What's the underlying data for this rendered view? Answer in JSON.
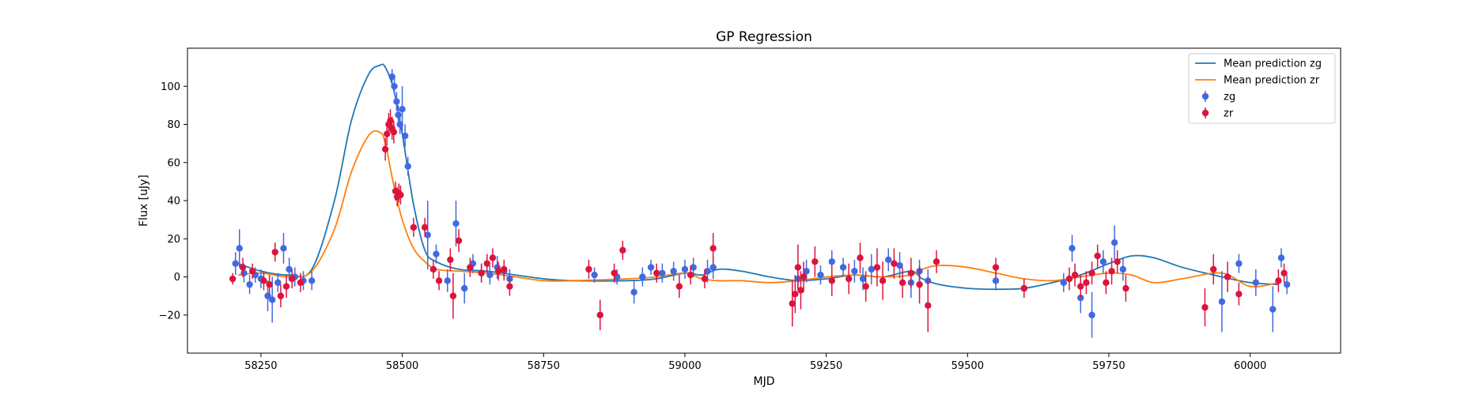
{
  "chart_data": {
    "type": "scatter",
    "title": "GP Regression",
    "xlabel": "MJD",
    "ylabel": "Flux [uJy]",
    "xlim": [
      58120,
      60160
    ],
    "ylim": [
      -40,
      120
    ],
    "xticks": [
      58250,
      58500,
      58750,
      59000,
      59250,
      59500,
      59750,
      60000
    ],
    "yticks": [
      -20,
      0,
      20,
      40,
      60,
      80,
      100
    ],
    "grid": false,
    "legend_position": "top-right",
    "colors": {
      "mean_zg": "#1f77b4",
      "mean_zr": "#ff7f0e",
      "obs_zg": "#4169e1",
      "obs_zr": "#dc143c"
    },
    "legend": [
      {
        "label": "Mean prediction zg",
        "kind": "line",
        "color": "#1f77b4"
      },
      {
        "label": "Mean prediction zr",
        "kind": "line",
        "color": "#ff7f0e"
      },
      {
        "label": "zg",
        "kind": "errorbar",
        "color": "#4169e1"
      },
      {
        "label": "zr",
        "kind": "errorbar",
        "color": "#dc143c"
      }
    ],
    "series": [
      {
        "name": "Mean prediction zg",
        "kind": "line",
        "x": [
          58210,
          58250,
          58300,
          58340,
          58380,
          58410,
          58440,
          58460,
          58470,
          58485,
          58500,
          58520,
          58540,
          58560,
          58600,
          58650,
          58700,
          58750,
          58800,
          58900,
          58950,
          59000,
          59030,
          59060,
          59100,
          59150,
          59200,
          59250,
          59300,
          59350,
          59400,
          59420,
          59450,
          59500,
          59550,
          59600,
          59650,
          59700,
          59750,
          59790,
          59830,
          59880,
          59950,
          60000,
          60050
        ],
        "y": [
          7,
          3,
          1,
          4,
          40,
          82,
          106,
          111,
          110,
          98,
          75,
          38,
          14,
          8,
          4,
          3,
          1,
          -1,
          -2,
          -2,
          -1,
          2,
          1,
          4,
          3,
          0,
          -2,
          -1,
          1,
          0,
          3,
          -1,
          -4,
          -6,
          -6.5,
          -6,
          -3,
          1,
          7,
          11,
          10,
          5,
          0,
          -3,
          -4
        ]
      },
      {
        "name": "Mean prediction zr",
        "kind": "line",
        "x": [
          58210,
          58250,
          58300,
          58340,
          58380,
          58410,
          58440,
          58460,
          58470,
          58485,
          58500,
          58520,
          58540,
          58560,
          58600,
          58650,
          58700,
          58750,
          58800,
          58900,
          58950,
          59000,
          59030,
          59060,
          59100,
          59150,
          59200,
          59250,
          59300,
          59350,
          59400,
          59420,
          59450,
          59500,
          59550,
          59600,
          59650,
          59700,
          59750,
          59790,
          59830,
          59880,
          59950,
          60000,
          60050
        ],
        "y": [
          1,
          2,
          0,
          3,
          25,
          55,
          74,
          76,
          70,
          48,
          30,
          15,
          8,
          4,
          3,
          2,
          0,
          -2,
          -2,
          -1,
          0,
          2,
          -1,
          -2,
          -2,
          -3,
          -2,
          0,
          1,
          0,
          1,
          4,
          6,
          5,
          2,
          -1,
          -2,
          0,
          2,
          1,
          -3,
          -1,
          2,
          -5,
          -3
        ]
      },
      {
        "name": "zg",
        "kind": "errorbar",
        "x": [
          58205,
          58212,
          58220,
          58230,
          58240,
          58250,
          58262,
          58270,
          58280,
          58290,
          58300,
          58310,
          58325,
          58340,
          58482,
          58486,
          58490,
          58493,
          58496,
          58500,
          58505,
          58510,
          58545,
          58560,
          58580,
          58595,
          58610,
          58625,
          58640,
          58655,
          58668,
          58680,
          58690,
          58840,
          58880,
          58910,
          58925,
          58940,
          58960,
          58980,
          59000,
          59015,
          59040,
          59050,
          59200,
          59215,
          59240,
          59260,
          59280,
          59300,
          59315,
          59330,
          59360,
          59380,
          59400,
          59415,
          59430,
          59550,
          59600,
          59670,
          59685,
          59700,
          59720,
          59740,
          59760,
          59775,
          59950,
          59980,
          60010,
          60040,
          60055,
          60065
        ],
        "y": [
          7,
          15,
          2,
          -4,
          1,
          -1,
          -10,
          -12,
          -3,
          15,
          4,
          0,
          -2,
          -2,
          105,
          100,
          92,
          85,
          80,
          88,
          74,
          58,
          22,
          12,
          -2,
          28,
          -6,
          7,
          2,
          1,
          5,
          3,
          -1,
          1,
          0,
          -8,
          0,
          5,
          2,
          3,
          4,
          5,
          3,
          5,
          -1,
          3,
          1,
          8,
          5,
          3,
          -1,
          4,
          9,
          6,
          -3,
          3,
          -2,
          -2,
          -6,
          -3,
          15,
          -11,
          -20,
          8,
          18,
          4,
          -13,
          7,
          -3,
          -17,
          10,
          -4
        ],
        "yerr": [
          6,
          10,
          5,
          5,
          4,
          5,
          8,
          12,
          5,
          8,
          6,
          5,
          5,
          5,
          4,
          4,
          5,
          5,
          5,
          12,
          6,
          5,
          18,
          5,
          6,
          12,
          8,
          5,
          5,
          5,
          6,
          5,
          5,
          4,
          4,
          6,
          5,
          4,
          5,
          5,
          5,
          5,
          6,
          6,
          5,
          6,
          5,
          6,
          5,
          6,
          6,
          8,
          6,
          7,
          8,
          6,
          6,
          5,
          5,
          5,
          7,
          8,
          12,
          6,
          9,
          6,
          16,
          5,
          7,
          12,
          5,
          5
        ]
      },
      {
        "name": "zr",
        "kind": "errorbar",
        "x": [
          58200,
          58218,
          58235,
          58255,
          58265,
          58275,
          58285,
          58295,
          58305,
          58320,
          58470,
          58473,
          58476,
          58479,
          58482,
          58485,
          58488,
          58491,
          58494,
          58497,
          58520,
          58540,
          58555,
          58565,
          58585,
          58590,
          58600,
          58620,
          58640,
          58650,
          58660,
          58670,
          58680,
          58690,
          58830,
          58850,
          58875,
          58890,
          58950,
          58990,
          59010,
          59035,
          59050,
          59190,
          59195,
          59200,
          59205,
          59210,
          59230,
          59260,
          59290,
          59310,
          59320,
          59340,
          59350,
          59370,
          59385,
          59400,
          59415,
          59430,
          59445,
          59550,
          59600,
          59680,
          59690,
          59700,
          59710,
          59720,
          59730,
          59745,
          59755,
          59765,
          59780,
          59920,
          59935,
          59960,
          59980,
          60050,
          60060
        ],
        "y": [
          -1,
          5,
          3,
          -2,
          -4,
          13,
          -10,
          -5,
          -1,
          -3,
          67,
          75,
          80,
          82,
          78,
          76,
          45,
          42,
          44,
          43,
          26,
          26,
          4,
          -2,
          9,
          -10,
          19,
          5,
          2,
          7,
          10,
          3,
          4,
          -5,
          4,
          -20,
          2,
          14,
          2,
          -5,
          1,
          -1,
          15,
          -14,
          -9,
          5,
          -7,
          0,
          8,
          -2,
          -1,
          10,
          -5,
          5,
          -2,
          7,
          -3,
          2,
          -4,
          -15,
          8,
          5,
          -6,
          -1,
          1,
          -5,
          -3,
          2,
          11,
          -3,
          3,
          8,
          -6,
          -16,
          4,
          0,
          -9,
          -2,
          2
        ],
        "yerr": [
          3,
          5,
          4,
          5,
          5,
          5,
          6,
          6,
          5,
          5,
          6,
          6,
          6,
          6,
          6,
          6,
          5,
          5,
          5,
          5,
          5,
          5,
          5,
          5,
          6,
          12,
          6,
          5,
          5,
          5,
          5,
          5,
          5,
          5,
          5,
          8,
          5,
          5,
          5,
          6,
          5,
          5,
          8,
          12,
          10,
          12,
          10,
          8,
          8,
          8,
          8,
          8,
          8,
          10,
          10,
          8,
          8,
          8,
          10,
          14,
          6,
          5,
          5,
          6,
          6,
          6,
          6,
          6,
          6,
          6,
          7,
          6,
          7,
          10,
          8,
          8,
          6,
          6,
          5
        ]
      }
    ]
  }
}
